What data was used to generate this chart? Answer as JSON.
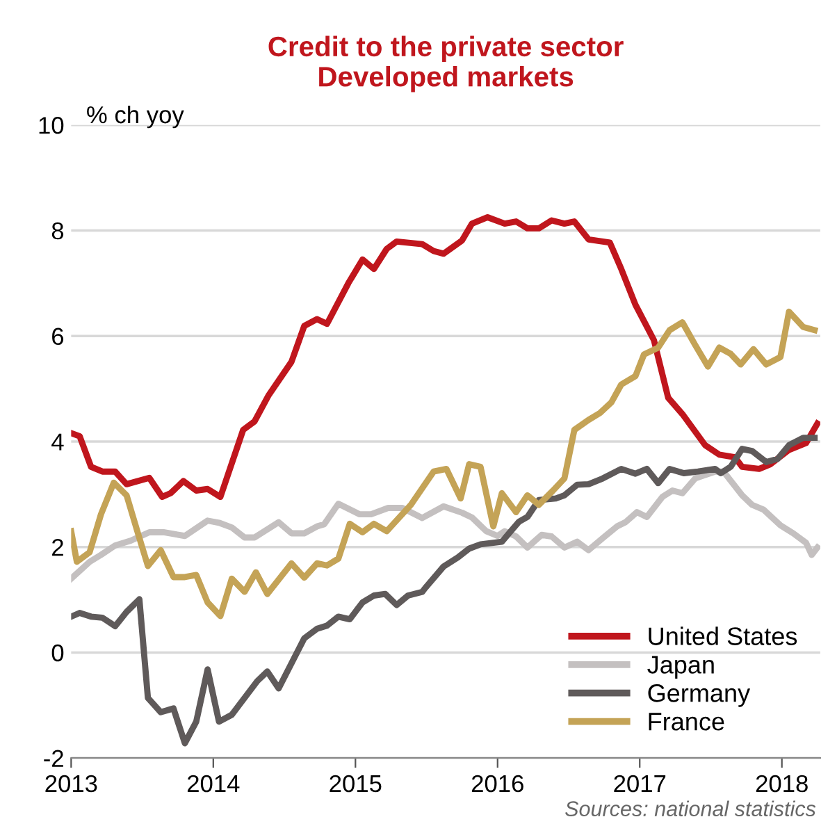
{
  "chart_data": {
    "type": "line",
    "title": "Credit to the private sector\nDeveloped markets",
    "ylabel": "% ch yoy",
    "annotations": [
      "Sources: national statistics"
    ],
    "xlim": [
      2013,
      2018.27
    ],
    "xticks": [
      2013,
      2014,
      2015,
      2016,
      2017,
      2018
    ],
    "ylim": [
      -2,
      10
    ],
    "yticks": [
      -2,
      0,
      2,
      4,
      6,
      8,
      10
    ],
    "grid": "y",
    "legend": "bottom right",
    "line_style": "solid",
    "series": [
      {
        "name": "United States",
        "color": "#c0161d",
        "x": [
          2013.0,
          2013.06,
          2013.14,
          2013.22,
          2013.31,
          2013.39,
          2013.55,
          2013.64,
          2013.7,
          2013.79,
          2013.88,
          2013.96,
          2014.05,
          2014.21,
          2014.29,
          2014.39,
          2014.55,
          2014.64,
          2014.73,
          2014.8,
          2014.95,
          2015.05,
          2015.13,
          2015.22,
          2015.29,
          2015.47,
          2015.55,
          2015.62,
          2015.75,
          2015.82,
          2015.93,
          2016.05,
          2016.13,
          2016.21,
          2016.29,
          2016.38,
          2016.47,
          2016.54,
          2016.64,
          2016.79,
          2016.87,
          2016.97,
          2017.1,
          2017.2,
          2017.3,
          2017.46,
          2017.56,
          2017.67,
          2017.72,
          2017.84,
          2017.92,
          2018.05,
          2018.17,
          2018.25
        ],
        "values": [
          4.16,
          4.1,
          3.52,
          3.43,
          3.43,
          3.19,
          3.31,
          2.95,
          3.02,
          3.25,
          3.07,
          3.1,
          2.95,
          4.22,
          4.38,
          4.88,
          5.51,
          6.19,
          6.32,
          6.23,
          7.0,
          7.45,
          7.27,
          7.65,
          7.79,
          7.74,
          7.61,
          7.56,
          7.81,
          8.13,
          8.25,
          8.13,
          8.17,
          8.04,
          8.04,
          8.19,
          8.13,
          8.17,
          7.83,
          7.77,
          7.27,
          6.59,
          5.92,
          4.83,
          4.52,
          3.93,
          3.75,
          3.7,
          3.52,
          3.48,
          3.57,
          3.84,
          3.97,
          4.34
        ]
      },
      {
        "name": "Japan",
        "color": "#c4c0c0",
        "x": [
          2013.0,
          2013.13,
          2013.21,
          2013.31,
          2013.42,
          2013.55,
          2013.65,
          2013.8,
          2013.96,
          2014.04,
          2014.13,
          2014.22,
          2014.29,
          2014.46,
          2014.55,
          2014.64,
          2014.73,
          2014.78,
          2014.88,
          2015.03,
          2015.11,
          2015.23,
          2015.33,
          2015.47,
          2015.62,
          2015.75,
          2015.82,
          2015.92,
          2016.0,
          2016.05,
          2016.13,
          2016.21,
          2016.31,
          2016.38,
          2016.47,
          2016.56,
          2016.64,
          2016.74,
          2016.84,
          2016.9,
          2016.98,
          2017.05,
          2017.16,
          2017.23,
          2017.3,
          2017.39,
          2017.53,
          2017.59,
          2017.72,
          2017.79,
          2017.87,
          2017.99,
          2018.08,
          2018.17,
          2018.21,
          2018.25
        ],
        "values": [
          1.4,
          1.72,
          1.85,
          2.03,
          2.12,
          2.28,
          2.28,
          2.21,
          2.5,
          2.46,
          2.37,
          2.18,
          2.18,
          2.47,
          2.26,
          2.26,
          2.39,
          2.43,
          2.82,
          2.62,
          2.62,
          2.74,
          2.74,
          2.55,
          2.77,
          2.65,
          2.56,
          2.3,
          2.21,
          2.3,
          2.2,
          1.99,
          2.23,
          2.2,
          1.99,
          2.1,
          1.94,
          2.17,
          2.39,
          2.47,
          2.66,
          2.57,
          2.95,
          3.07,
          3.02,
          3.3,
          3.43,
          3.43,
          2.98,
          2.8,
          2.71,
          2.41,
          2.26,
          2.08,
          1.85,
          1.99
        ]
      },
      {
        "name": "Germany",
        "color": "#5f5a5a",
        "x": [
          2013.0,
          2013.06,
          2013.14,
          2013.22,
          2013.31,
          2013.39,
          2013.48,
          2013.54,
          2013.63,
          2013.72,
          2013.8,
          2013.88,
          2013.96,
          2014.04,
          2014.13,
          2014.31,
          2014.38,
          2014.46,
          2014.64,
          2014.73,
          2014.8,
          2014.88,
          2014.96,
          2015.05,
          2015.13,
          2015.21,
          2015.29,
          2015.37,
          2015.47,
          2015.49,
          2015.62,
          2015.72,
          2015.8,
          2015.88,
          2016.03,
          2016.15,
          2016.21,
          2016.29,
          2016.41,
          2016.47,
          2016.56,
          2016.64,
          2016.74,
          2016.87,
          2016.97,
          2017.05,
          2017.13,
          2017.21,
          2017.31,
          2017.41,
          2017.53,
          2017.57,
          2017.64,
          2017.72,
          2017.79,
          2017.89,
          2017.97,
          2018.05,
          2018.15,
          2018.23
        ],
        "values": [
          0.68,
          0.75,
          0.68,
          0.66,
          0.5,
          0.77,
          1.01,
          -0.86,
          -1.13,
          -1.06,
          -1.72,
          -1.31,
          -0.32,
          -1.31,
          -1.18,
          -0.54,
          -0.36,
          -0.68,
          0.27,
          0.45,
          0.51,
          0.68,
          0.63,
          0.95,
          1.08,
          1.11,
          0.9,
          1.08,
          1.15,
          1.22,
          1.63,
          1.8,
          1.97,
          2.05,
          2.1,
          2.48,
          2.57,
          2.89,
          2.92,
          2.98,
          3.18,
          3.19,
          3.3,
          3.48,
          3.39,
          3.48,
          3.21,
          3.48,
          3.4,
          3.43,
          3.48,
          3.4,
          3.52,
          3.86,
          3.82,
          3.61,
          3.67,
          3.93,
          4.07,
          4.07
        ]
      },
      {
        "name": "France",
        "color": "#c4a356",
        "x": [
          2013.0,
          2013.04,
          2013.13,
          2013.21,
          2013.3,
          2013.39,
          2013.47,
          2013.54,
          2013.63,
          2013.72,
          2013.8,
          2013.88,
          2013.96,
          2014.05,
          2014.13,
          2014.22,
          2014.3,
          2014.38,
          2014.55,
          2014.64,
          2014.73,
          2014.8,
          2014.88,
          2014.96,
          2015.05,
          2015.13,
          2015.22,
          2015.39,
          2015.55,
          2015.64,
          2015.74,
          2015.8,
          2015.88,
          2015.97,
          2016.03,
          2016.13,
          2016.21,
          2016.29,
          2016.39,
          2016.47,
          2016.54,
          2016.64,
          2016.72,
          2016.8,
          2016.87,
          2016.97,
          2017.03,
          2017.13,
          2017.21,
          2017.3,
          2017.39,
          2017.48,
          2017.56,
          2017.64,
          2017.71,
          2017.8,
          2017.89,
          2017.99,
          2018.05,
          2018.15,
          2018.23
        ],
        "values": [
          2.3,
          1.72,
          1.9,
          2.62,
          3.22,
          2.98,
          2.26,
          1.64,
          1.94,
          1.43,
          1.43,
          1.47,
          0.95,
          0.69,
          1.4,
          1.15,
          1.52,
          1.11,
          1.69,
          1.42,
          1.69,
          1.65,
          1.78,
          2.44,
          2.28,
          2.44,
          2.3,
          2.8,
          3.43,
          3.48,
          2.92,
          3.57,
          3.52,
          2.39,
          3.02,
          2.66,
          2.98,
          2.8,
          3.07,
          3.3,
          4.22,
          4.41,
          4.54,
          4.74,
          5.08,
          5.24,
          5.65,
          5.78,
          6.11,
          6.26,
          5.83,
          5.42,
          5.78,
          5.66,
          5.46,
          5.75,
          5.46,
          5.6,
          6.46,
          6.17,
          6.11
        ]
      }
    ]
  }
}
